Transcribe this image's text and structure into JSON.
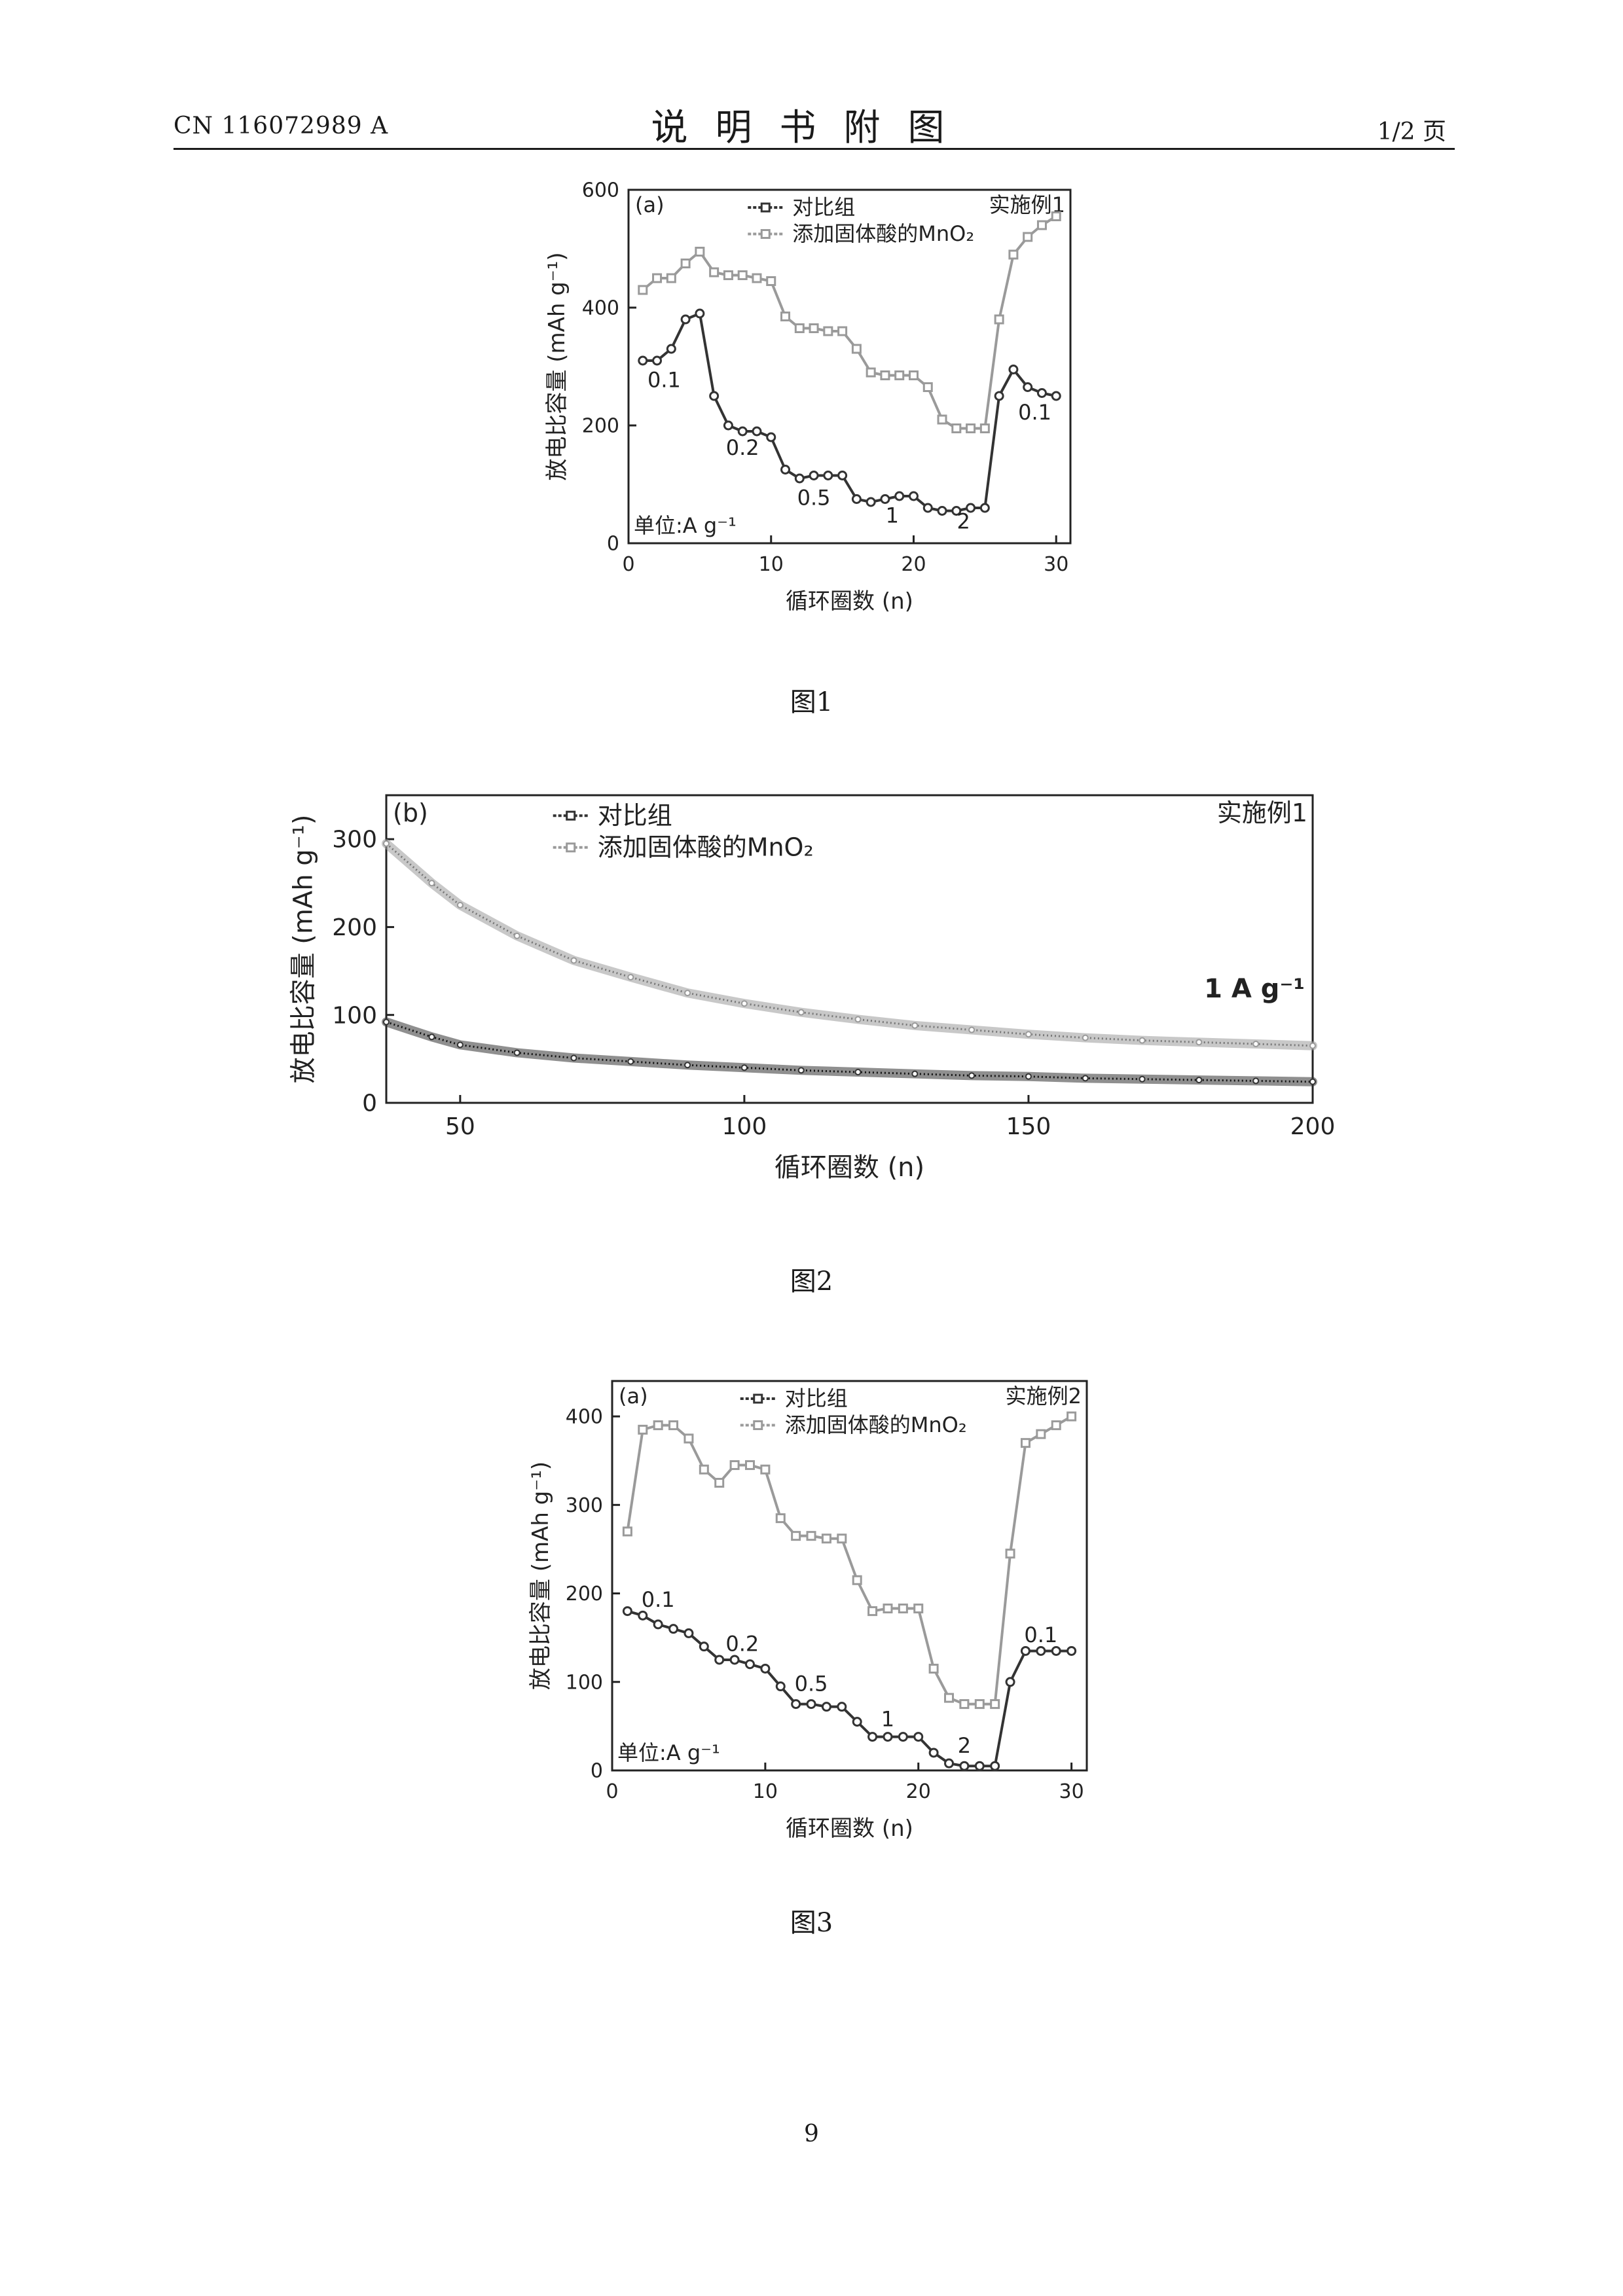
{
  "header": {
    "patent_no": "CN 116072989 A",
    "title": "说明书附图",
    "page": "1/2 页"
  },
  "captions": [
    "图1",
    "图2",
    "图3"
  ],
  "page_number": "9",
  "chart_data": [
    {
      "type": "line",
      "panel": "(a)",
      "corner_label": "实施例1",
      "xlabel": "循环圈数 (n)",
      "ylabel": "放电比容量 (mAh g⁻¹)",
      "xlim": [
        0,
        31
      ],
      "ylim": [
        0,
        600
      ],
      "xticks": [
        0,
        10,
        20,
        30
      ],
      "yticks": [
        0,
        200,
        400,
        600
      ],
      "unit_note": "单位:A g⁻¹",
      "rate_labels": [
        {
          "text": "0.1",
          "x": 2.5,
          "y": 265
        },
        {
          "text": "0.2",
          "x": 8.0,
          "y": 150
        },
        {
          "text": "0.5",
          "x": 13.0,
          "y": 65
        },
        {
          "text": "1",
          "x": 18.5,
          "y": 35
        },
        {
          "text": "2",
          "x": 23.5,
          "y": 25
        },
        {
          "text": "0.1",
          "x": 28.5,
          "y": 210
        }
      ],
      "series": [
        {
          "name": "对比组",
          "color": "#333333",
          "marker": "circle",
          "x": [
            1,
            2,
            3,
            4,
            5,
            6,
            7,
            8,
            9,
            10,
            11,
            12,
            13,
            14,
            15,
            16,
            17,
            18,
            19,
            20,
            21,
            22,
            23,
            24,
            25,
            26,
            27,
            28,
            29,
            30
          ],
          "y": [
            310,
            310,
            330,
            380,
            390,
            250,
            200,
            190,
            190,
            180,
            125,
            110,
            115,
            115,
            115,
            75,
            70,
            75,
            80,
            80,
            60,
            55,
            55,
            60,
            60,
            250,
            295,
            265,
            255,
            250
          ]
        },
        {
          "name": "添加固体酸的MnO₂",
          "color": "#9a9a9a",
          "marker": "square",
          "x": [
            1,
            2,
            3,
            4,
            5,
            6,
            7,
            8,
            9,
            10,
            11,
            12,
            13,
            14,
            15,
            16,
            17,
            18,
            19,
            20,
            21,
            22,
            23,
            24,
            25,
            26,
            27,
            28,
            29,
            30
          ],
          "y": [
            430,
            450,
            450,
            475,
            495,
            460,
            455,
            455,
            450,
            445,
            385,
            365,
            365,
            360,
            360,
            330,
            290,
            285,
            285,
            285,
            265,
            210,
            195,
            195,
            195,
            380,
            490,
            520,
            540,
            555
          ]
        }
      ]
    },
    {
      "type": "line",
      "panel": "(b)",
      "corner_label": "实施例1",
      "xlabel": "循环圈数 (n)",
      "ylabel": "放电比容量 (mAh g⁻¹)",
      "xlim": [
        37,
        200
      ],
      "ylim": [
        0,
        350
      ],
      "xticks": [
        50,
        100,
        150,
        200
      ],
      "yticks": [
        0,
        100,
        200,
        300
      ],
      "rate_note": "1 A g⁻¹",
      "series": [
        {
          "name": "对比组",
          "color": "#333333",
          "marker": "circle",
          "x": [
            37,
            45,
            50,
            60,
            70,
            80,
            90,
            100,
            110,
            120,
            130,
            140,
            150,
            160,
            170,
            180,
            190,
            200
          ],
          "y": [
            92,
            75,
            66,
            57,
            51,
            47,
            43,
            40,
            37,
            35,
            33,
            31,
            30,
            28,
            27,
            26,
            25,
            24
          ]
        },
        {
          "name": "添加固体酸的MnO₂",
          "color": "#9a9a9a",
          "marker": "square",
          "x": [
            37,
            45,
            50,
            60,
            70,
            80,
            90,
            100,
            110,
            120,
            130,
            140,
            150,
            160,
            170,
            180,
            190,
            200
          ],
          "y": [
            295,
            250,
            225,
            190,
            162,
            143,
            125,
            113,
            103,
            95,
            88,
            83,
            78,
            74,
            71,
            69,
            67,
            65
          ]
        }
      ]
    },
    {
      "type": "line",
      "panel": "(a)",
      "corner_label": "实施例2",
      "xlabel": "循环圈数 (n)",
      "ylabel": "放电比容量 (mAh g⁻¹)",
      "xlim": [
        0,
        31
      ],
      "ylim": [
        0,
        440
      ],
      "xticks": [
        0,
        10,
        20,
        30
      ],
      "yticks": [
        0,
        100,
        200,
        300,
        400
      ],
      "unit_note": "单位:A g⁻¹",
      "rate_labels": [
        {
          "text": "0.1",
          "x": 3.0,
          "y": 185
        },
        {
          "text": "0.2",
          "x": 8.5,
          "y": 135
        },
        {
          "text": "0.5",
          "x": 13.0,
          "y": 90
        },
        {
          "text": "1",
          "x": 18.0,
          "y": 50
        },
        {
          "text": "2",
          "x": 23.0,
          "y": 20
        },
        {
          "text": "0.1",
          "x": 28.0,
          "y": 145
        }
      ],
      "series": [
        {
          "name": "对比组",
          "color": "#333333",
          "marker": "circle",
          "x": [
            1,
            2,
            3,
            4,
            5,
            6,
            7,
            8,
            9,
            10,
            11,
            12,
            13,
            14,
            15,
            16,
            17,
            18,
            19,
            20,
            21,
            22,
            23,
            24,
            25,
            26,
            27,
            28,
            29,
            30
          ],
          "y": [
            180,
            175,
            165,
            160,
            155,
            140,
            125,
            125,
            120,
            115,
            95,
            75,
            75,
            72,
            72,
            55,
            38,
            38,
            38,
            38,
            20,
            8,
            5,
            5,
            5,
            100,
            135,
            135,
            135,
            135
          ]
        },
        {
          "name": "添加固体酸的MnO₂",
          "color": "#9a9a9a",
          "marker": "square",
          "x": [
            1,
            2,
            3,
            4,
            5,
            6,
            7,
            8,
            9,
            10,
            11,
            12,
            13,
            14,
            15,
            16,
            17,
            18,
            19,
            20,
            21,
            22,
            23,
            24,
            25,
            26,
            27,
            28,
            29,
            30
          ],
          "y": [
            270,
            385,
            390,
            390,
            375,
            340,
            325,
            345,
            345,
            340,
            285,
            265,
            265,
            262,
            262,
            215,
            180,
            183,
            183,
            183,
            115,
            82,
            75,
            75,
            75,
            245,
            370,
            380,
            390,
            400
          ]
        }
      ]
    }
  ]
}
